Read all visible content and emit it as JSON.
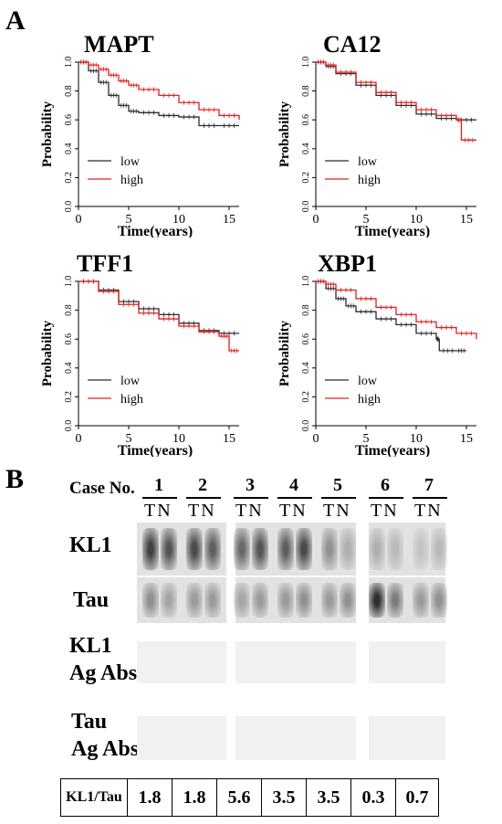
{
  "panel_a_label": "A",
  "panel_b_label": "B",
  "chart_data": [
    {
      "type": "line",
      "title": "MAPT",
      "xlabel": "Time(years)",
      "ylabel": "Probability",
      "xlim": [
        0,
        16
      ],
      "ylim": [
        0,
        1
      ],
      "xticks": [
        0,
        5,
        10,
        15
      ],
      "yticks": [
        "0.0",
        "0.2",
        "0.4",
        "0.6",
        "0.8",
        "1.0"
      ],
      "series": [
        {
          "name": "low",
          "color": "#2b2b2b",
          "x": [
            0,
            1,
            2,
            3,
            4,
            5,
            6,
            8,
            10,
            12,
            14,
            16
          ],
          "y": [
            1.0,
            0.94,
            0.86,
            0.77,
            0.7,
            0.66,
            0.65,
            0.63,
            0.62,
            0.56,
            0.56,
            0.56
          ]
        },
        {
          "name": "high",
          "color": "#e0201e",
          "x": [
            0,
            1,
            2,
            3,
            4,
            5,
            6,
            8,
            10,
            12,
            14,
            16
          ],
          "y": [
            1.0,
            0.98,
            0.95,
            0.91,
            0.87,
            0.84,
            0.81,
            0.77,
            0.72,
            0.67,
            0.63,
            0.6
          ]
        }
      ]
    },
    {
      "type": "line",
      "title": "CA12",
      "xlabel": "Time(years)",
      "ylabel": "Probability",
      "xlim": [
        0,
        16
      ],
      "ylim": [
        0,
        1
      ],
      "xticks": [
        0,
        5,
        10,
        15
      ],
      "yticks": [
        "0.0",
        "0.2",
        "0.4",
        "0.6",
        "0.8",
        "1.0"
      ],
      "series": [
        {
          "name": "low",
          "color": "#2b2b2b",
          "x": [
            0,
            1,
            2,
            4,
            6,
            8,
            10,
            12,
            14,
            16
          ],
          "y": [
            1.0,
            0.97,
            0.92,
            0.84,
            0.77,
            0.7,
            0.64,
            0.61,
            0.6,
            0.6
          ]
        },
        {
          "name": "high",
          "color": "#e0201e",
          "x": [
            0,
            1,
            2,
            4,
            6,
            8,
            10,
            12,
            14,
            14.5,
            16
          ],
          "y": [
            1.0,
            0.98,
            0.93,
            0.86,
            0.79,
            0.72,
            0.67,
            0.63,
            0.6,
            0.46,
            0.46
          ]
        }
      ]
    },
    {
      "type": "line",
      "title": "TFF1",
      "xlabel": "Time(years)",
      "ylabel": "Probability",
      "xlim": [
        0,
        16
      ],
      "ylim": [
        0,
        1
      ],
      "xticks": [
        0,
        5,
        10,
        15
      ],
      "yticks": [
        "0.0",
        "0.2",
        "0.4",
        "0.6",
        "0.8",
        "1.0"
      ],
      "series": [
        {
          "name": "low",
          "color": "#2b2b2b",
          "x": [
            0,
            2,
            4,
            6,
            8,
            10,
            12,
            14,
            16
          ],
          "y": [
            1.0,
            0.94,
            0.86,
            0.81,
            0.77,
            0.71,
            0.66,
            0.64,
            0.64
          ]
        },
        {
          "name": "high",
          "color": "#e0201e",
          "x": [
            0,
            2,
            4,
            6,
            8,
            10,
            12,
            14,
            15,
            16
          ],
          "y": [
            1.0,
            0.93,
            0.84,
            0.78,
            0.74,
            0.69,
            0.65,
            0.62,
            0.52,
            0.52
          ]
        }
      ]
    },
    {
      "type": "line",
      "title": "XBP1",
      "xlabel": "Time(years)",
      "ylabel": "Probability",
      "xlim": [
        0,
        16
      ],
      "ylim": [
        0,
        1
      ],
      "xticks": [
        0,
        5,
        10,
        15
      ],
      "yticks": [
        "0.0",
        "0.2",
        "0.4",
        "0.6",
        "0.8",
        "1.0"
      ],
      "series": [
        {
          "name": "low",
          "color": "#2b2b2b",
          "x": [
            0,
            1,
            2,
            3,
            4,
            6,
            8,
            10,
            12,
            12.3,
            14,
            15
          ],
          "y": [
            1.0,
            0.95,
            0.88,
            0.83,
            0.79,
            0.74,
            0.7,
            0.64,
            0.6,
            0.52,
            0.52,
            0.52
          ]
        },
        {
          "name": "high",
          "color": "#e0201e",
          "x": [
            0,
            1,
            2,
            4,
            6,
            8,
            10,
            12,
            14,
            16
          ],
          "y": [
            1.0,
            0.98,
            0.94,
            0.88,
            0.82,
            0.77,
            0.72,
            0.68,
            0.64,
            0.6
          ]
        }
      ]
    }
  ],
  "blot": {
    "case_header": "Case No.",
    "cases": [
      "1",
      "2",
      "3",
      "4",
      "5",
      "6",
      "7"
    ],
    "tn_label": "TN",
    "rows": [
      {
        "label_line1": "KL1",
        "label_line2": ""
      },
      {
        "label_line1": "Tau",
        "label_line2": ""
      },
      {
        "label_line1": "KL1",
        "label_line2": "Ag Abs"
      },
      {
        "label_line1": "Tau",
        "label_line2": "Ag Abs"
      }
    ],
    "ratio_label": "KL1/Tau",
    "ratios": [
      "1.8",
      "1.8",
      "5.6",
      "3.5",
      "3.5",
      "0.3",
      "0.7"
    ]
  }
}
